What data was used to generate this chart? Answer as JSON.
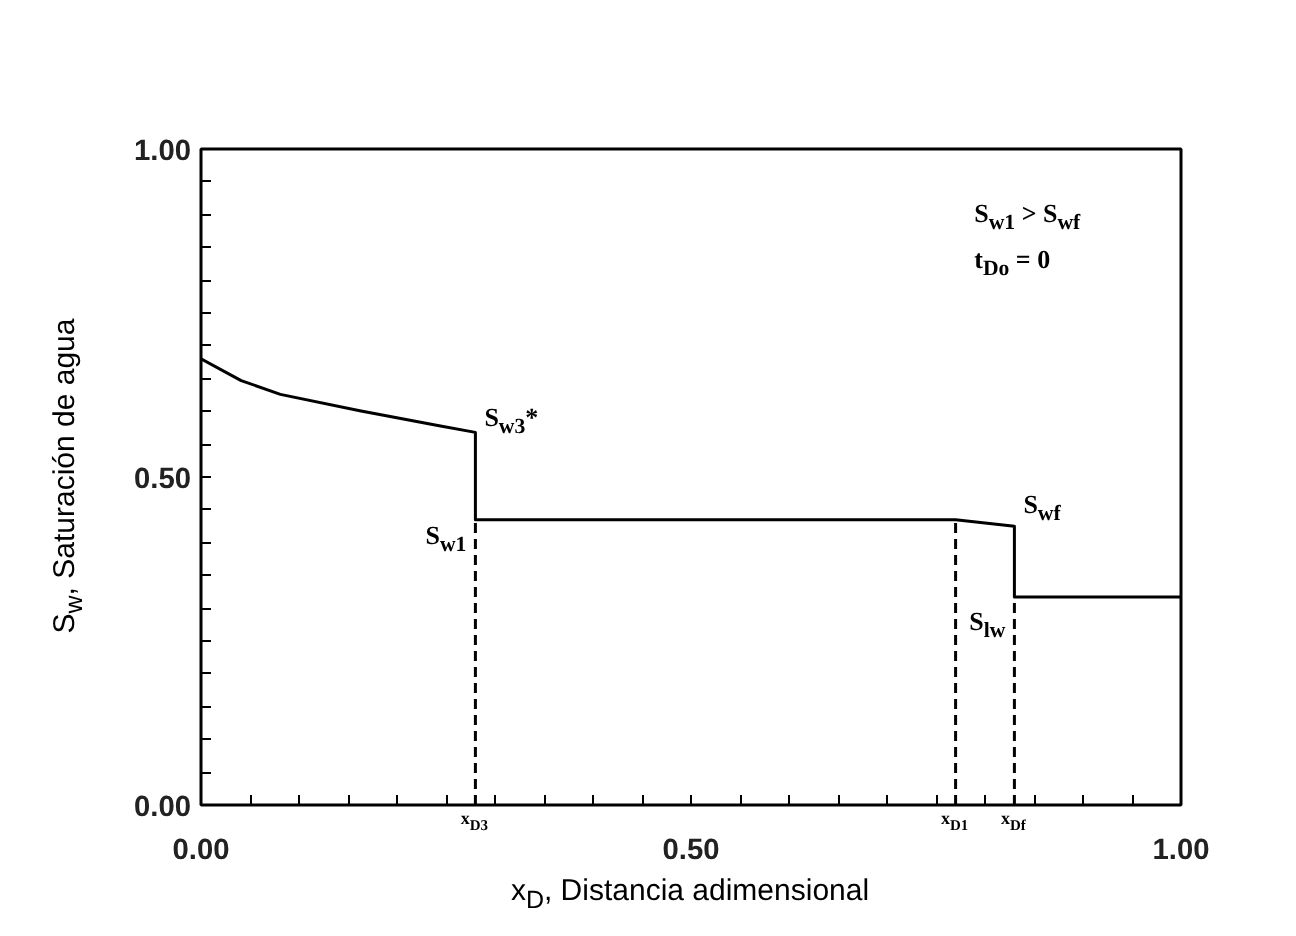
{
  "chart_data": {
    "type": "line",
    "xlabel": "x$_{D}$, Distancia adimensional",
    "ylabel": "S$_{w}$, Saturación de agua",
    "xlim": [
      0,
      1
    ],
    "ylim": [
      0,
      1
    ],
    "xticks": [
      {
        "value": 0,
        "label": "0.00"
      },
      {
        "value": 0.05,
        "label": null
      },
      {
        "value": 0.1,
        "label": null
      },
      {
        "value": 0.15,
        "label": null
      },
      {
        "value": 0.2,
        "label": null
      },
      {
        "value": 0.25,
        "label": null
      },
      {
        "value": 0.3,
        "label": null
      },
      {
        "value": 0.35,
        "label": null
      },
      {
        "value": 0.4,
        "label": null
      },
      {
        "value": 0.45,
        "label": null
      },
      {
        "value": 0.5,
        "label": "0.50"
      },
      {
        "value": 0.55,
        "label": null
      },
      {
        "value": 0.6,
        "label": null
      },
      {
        "value": 0.65,
        "label": null
      },
      {
        "value": 0.7,
        "label": null
      },
      {
        "value": 0.75,
        "label": null
      },
      {
        "value": 0.8,
        "label": null
      },
      {
        "value": 0.85,
        "label": null
      },
      {
        "value": 0.9,
        "label": null
      },
      {
        "value": 0.95,
        "label": null
      },
      {
        "value": 1,
        "label": "1.00"
      }
    ],
    "yticks": [
      {
        "value": 0,
        "label": "0.00"
      },
      {
        "value": 0.05,
        "label": null
      },
      {
        "value": 0.1,
        "label": null
      },
      {
        "value": 0.15,
        "label": null
      },
      {
        "value": 0.2,
        "label": null
      },
      {
        "value": 0.25,
        "label": null
      },
      {
        "value": 0.3,
        "label": null
      },
      {
        "value": 0.35,
        "label": null
      },
      {
        "value": 0.4,
        "label": null
      },
      {
        "value": 0.45,
        "label": null
      },
      {
        "value": 0.5,
        "label": "0.50"
      },
      {
        "value": 0.55,
        "label": null
      },
      {
        "value": 0.6,
        "label": null
      },
      {
        "value": 0.65,
        "label": null
      },
      {
        "value": 0.7,
        "label": null
      },
      {
        "value": 0.75,
        "label": null
      },
      {
        "value": 0.8,
        "label": null
      },
      {
        "value": 0.85,
        "label": null
      },
      {
        "value": 0.9,
        "label": null
      },
      {
        "value": 0.95,
        "label": null
      },
      {
        "value": 1,
        "label": "1.00"
      }
    ],
    "grid": false,
    "marker": "none",
    "series": [
      {
        "color": "#000000",
        "line_style": "solid",
        "x": [
          0,
          0.041,
          0.081,
          0.162,
          0.243,
          0.28,
          0.28,
          0.77,
          0.83,
          0.83,
          1.0
        ],
        "values": [
          0.68,
          0.647,
          0.626,
          0.601,
          0.578,
          0.568,
          0.435,
          0.435,
          0.425,
          0.317,
          0.317
        ]
      },
      {
        "color": "#000000",
        "line_style": "dashed",
        "x": [
          0.28,
          0.28
        ],
        "values": [
          0,
          0.435
        ]
      },
      {
        "color": "#000000",
        "line_style": "dashed",
        "x": [
          0.77,
          0.77
        ],
        "values": [
          0,
          0.435
        ]
      },
      {
        "color": "#000000",
        "line_style": "dashed",
        "x": [
          0.83,
          0.83
        ],
        "values": [
          0,
          0.317
        ]
      }
    ],
    "annotations": [
      {
        "text": "S$_{w3}$*",
        "x": 0.28,
        "y": 0.568
      },
      {
        "text": "S$_{w1}$",
        "x": 0.28,
        "y": 0.435
      },
      {
        "text": "S$_{wf}$",
        "x": 0.83,
        "y": 0.425
      },
      {
        "text": "S$_{lw}$",
        "x": 0.83,
        "y": 0.317
      },
      {
        "text": "x$_{D3}$",
        "x": 0.28,
        "y": 0
      },
      {
        "text": "x$_{D1}$",
        "x": 0.77,
        "y": 0
      },
      {
        "text": "x$_{Df}$",
        "x": 0.83,
        "y": 0
      },
      "S$_{w1}$ > S$_{wf}$",
      "t$_{Do}$ = 0"
    ]
  }
}
